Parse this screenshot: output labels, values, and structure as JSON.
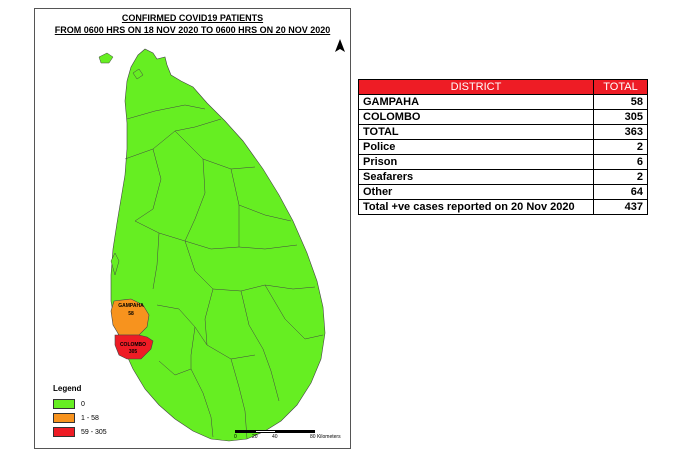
{
  "map": {
    "title_line1": "CONFIRMED COVID19 PATIENTS",
    "title_line2": "FROM  0600 HRS ON 18 NOV 2020 TO   0600 HRS ON 20 NOV 2020",
    "districts": [
      {
        "name": "GAMPAHA",
        "value": "58",
        "fill": "#f7931e"
      },
      {
        "name": "COLOMBO",
        "value": "305",
        "fill": "#ee1c25"
      }
    ],
    "base_fill": "#66ee22"
  },
  "legend": {
    "title": "Legend",
    "items": [
      {
        "label": "0",
        "color": "#66ee22"
      },
      {
        "label": "1 - 58",
        "color": "#f7931e"
      },
      {
        "label": "59 - 305",
        "color": "#ee1c25"
      }
    ]
  },
  "scale": {
    "ticks": [
      "0",
      "20",
      "40",
      "80 Kilometers"
    ]
  },
  "table": {
    "headers": [
      "DISTRICT",
      "TOTAL"
    ],
    "header_color": "#ee1c25",
    "rows": [
      {
        "district": "GAMPAHA",
        "total": "58"
      },
      {
        "district": "COLOMBO",
        "total": "305"
      },
      {
        "district": "TOTAL",
        "total": "363"
      },
      {
        "district": "Police",
        "total": "2"
      },
      {
        "district": "Prison",
        "total": "6"
      },
      {
        "district": "Seafarers",
        "total": "2"
      },
      {
        "district": "Other",
        "total": "64"
      },
      {
        "district": "Total +ve cases reported on 20 Nov 2020",
        "total": "437"
      }
    ]
  }
}
